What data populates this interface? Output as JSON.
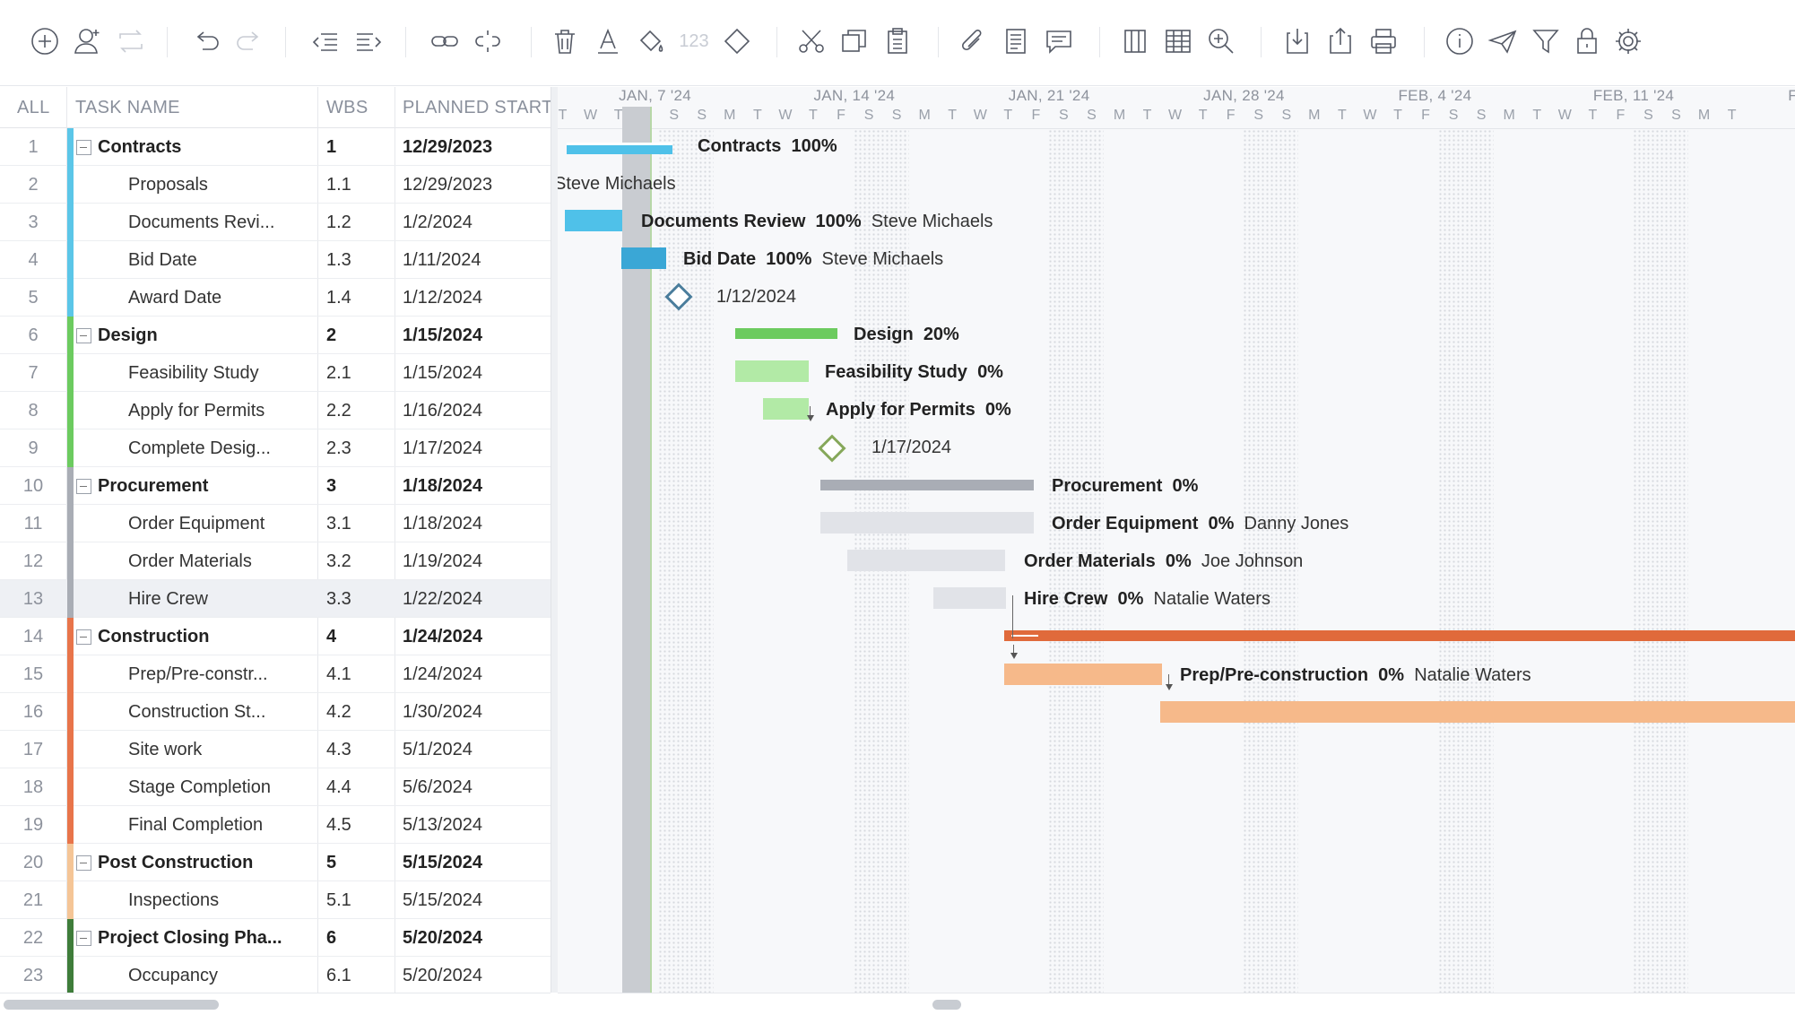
{
  "toolbar": {
    "icons": [
      "add-task-icon",
      "add-user-icon",
      "recurring-icon",
      "undo-icon",
      "redo-icon",
      "outdent-icon",
      "indent-icon",
      "link-icon",
      "unlink-icon",
      "delete-icon",
      "text-color-icon",
      "fill-color-icon",
      "numbering-icon",
      "milestone-icon",
      "cut-icon",
      "copy-icon",
      "paste-icon",
      "attachment-icon",
      "notes-icon",
      "comments-icon",
      "columns-icon",
      "table-icon",
      "zoom-icon",
      "import-icon",
      "export-icon",
      "print-icon",
      "info-icon",
      "send-icon",
      "filter-icon",
      "lock-icon",
      "settings-icon"
    ],
    "numbering_label": "123"
  },
  "grid": {
    "headers": {
      "all": "ALL",
      "task_name": "TASK NAME",
      "wbs": "WBS",
      "planned_start": "PLANNED START"
    },
    "rows": [
      {
        "num": "1",
        "name": "Contracts",
        "wbs": "1",
        "start": "12/29/2023",
        "parent": true,
        "color": "#5bc6e8"
      },
      {
        "num": "2",
        "name": "Proposals",
        "wbs": "1.1",
        "start": "12/29/2023",
        "parent": false,
        "color": "#5bc6e8"
      },
      {
        "num": "3",
        "name": "Documents Revi...",
        "wbs": "1.2",
        "start": "1/2/2024",
        "parent": false,
        "color": "#5bc6e8"
      },
      {
        "num": "4",
        "name": "Bid Date",
        "wbs": "1.3",
        "start": "1/11/2024",
        "parent": false,
        "color": "#5bc6e8"
      },
      {
        "num": "5",
        "name": "Award Date",
        "wbs": "1.4",
        "start": "1/12/2024",
        "parent": false,
        "color": "#5bc6e8"
      },
      {
        "num": "6",
        "name": "Design",
        "wbs": "2",
        "start": "1/15/2024",
        "parent": true,
        "color": "#6ccb5f"
      },
      {
        "num": "7",
        "name": "Feasibility Study",
        "wbs": "2.1",
        "start": "1/15/2024",
        "parent": false,
        "color": "#6ccb5f"
      },
      {
        "num": "8",
        "name": "Apply for Permits",
        "wbs": "2.2",
        "start": "1/16/2024",
        "parent": false,
        "color": "#6ccb5f"
      },
      {
        "num": "9",
        "name": "Complete Desig...",
        "wbs": "2.3",
        "start": "1/17/2024",
        "parent": false,
        "color": "#6ccb5f"
      },
      {
        "num": "10",
        "name": "Procurement",
        "wbs": "3",
        "start": "1/18/2024",
        "parent": true,
        "color": "#a9adb5"
      },
      {
        "num": "11",
        "name": "Order Equipment",
        "wbs": "3.1",
        "start": "1/18/2024",
        "parent": false,
        "color": "#a9adb5"
      },
      {
        "num": "12",
        "name": "Order Materials",
        "wbs": "3.2",
        "start": "1/19/2024",
        "parent": false,
        "color": "#a9adb5"
      },
      {
        "num": "13",
        "name": "Hire Crew",
        "wbs": "3.3",
        "start": "1/22/2024",
        "parent": false,
        "color": "#a9adb5",
        "highlight": true
      },
      {
        "num": "14",
        "name": "Construction",
        "wbs": "4",
        "start": "1/24/2024",
        "parent": true,
        "color": "#e8744a"
      },
      {
        "num": "15",
        "name": "Prep/Pre-constr...",
        "wbs": "4.1",
        "start": "1/24/2024",
        "parent": false,
        "color": "#e8744a"
      },
      {
        "num": "16",
        "name": "Construction St...",
        "wbs": "4.2",
        "start": "1/30/2024",
        "parent": false,
        "color": "#e8744a"
      },
      {
        "num": "17",
        "name": "Site work",
        "wbs": "4.3",
        "start": "5/1/2024",
        "parent": false,
        "color": "#e8744a"
      },
      {
        "num": "18",
        "name": "Stage Completion",
        "wbs": "4.4",
        "start": "5/6/2024",
        "parent": false,
        "color": "#e8744a"
      },
      {
        "num": "19",
        "name": "Final Completion",
        "wbs": "4.5",
        "start": "5/13/2024",
        "parent": false,
        "color": "#e8744a"
      },
      {
        "num": "20",
        "name": "Post Construction",
        "wbs": "5",
        "start": "5/15/2024",
        "parent": true,
        "color": "#f5c596"
      },
      {
        "num": "21",
        "name": "Inspections",
        "wbs": "5.1",
        "start": "5/15/2024",
        "parent": false,
        "color": "#f5c596"
      },
      {
        "num": "22",
        "name": "Project Closing Pha...",
        "wbs": "6",
        "start": "5/20/2024",
        "parent": true,
        "color": "#3f7d3a"
      },
      {
        "num": "23",
        "name": "Occupancy",
        "wbs": "6.1",
        "start": "5/20/2024",
        "parent": false,
        "color": "#3f7d3a"
      }
    ]
  },
  "gantt": {
    "weeks": [
      "JAN, 7 '24",
      "JAN, 14 '24",
      "JAN, 21 '24",
      "JAN, 28 '24",
      "FEB, 4 '24",
      "FEB, 11 '24",
      "FEB,"
    ],
    "day_letters": [
      "T",
      "W",
      "T",
      "F",
      "S",
      "S",
      "M",
      "T",
      "W",
      "T",
      "F",
      "S",
      "S",
      "M",
      "T",
      "W",
      "T",
      "F",
      "S",
      "S",
      "M",
      "T",
      "W",
      "T",
      "F",
      "S",
      "S",
      "M",
      "T",
      "W",
      "T",
      "F",
      "S",
      "S",
      "M",
      "T",
      "W",
      "T",
      "F",
      "S",
      "S",
      "M",
      "T"
    ],
    "tasks": {
      "r1": {
        "name": "Contracts",
        "pct": "100%"
      },
      "r2": {
        "assignee": "Steve Michaels"
      },
      "r3": {
        "name": "Documents Review",
        "pct": "100%",
        "assignee": "Steve Michaels"
      },
      "r4": {
        "name": "Bid Date",
        "pct": "100%",
        "assignee": "Steve Michaels"
      },
      "r5": {
        "date": "1/12/2024"
      },
      "r6": {
        "name": "Design",
        "pct": "20%"
      },
      "r7": {
        "name": "Feasibility Study",
        "pct": "0%"
      },
      "r8": {
        "name": "Apply for Permits",
        "pct": "0%"
      },
      "r9": {
        "date": "1/17/2024"
      },
      "r10": {
        "name": "Procurement",
        "pct": "0%"
      },
      "r11": {
        "name": "Order Equipment",
        "pct": "0%",
        "assignee": "Danny Jones"
      },
      "r12": {
        "name": "Order Materials",
        "pct": "0%",
        "assignee": "Joe Johnson"
      },
      "r13": {
        "name": "Hire Crew",
        "pct": "0%",
        "assignee": "Natalie Waters"
      },
      "r15": {
        "name": "Prep/Pre-construction",
        "pct": "0%",
        "assignee": "Natalie Waters"
      }
    }
  }
}
